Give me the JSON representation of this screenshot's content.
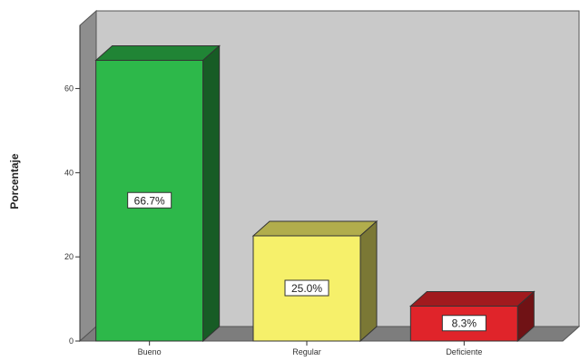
{
  "chart_data": {
    "type": "bar",
    "style": "3d",
    "title": "",
    "xlabel": "",
    "ylabel": "Porcentaje",
    "ylim": [
      0,
      75
    ],
    "yticks": [
      0,
      20,
      40,
      60
    ],
    "categories": [
      "Bueno",
      "Regular",
      "Deficiente"
    ],
    "values": [
      66.7,
      25.0,
      8.3
    ],
    "data_labels": [
      "66.7%",
      "25.0%",
      "8.3%"
    ],
    "colors": [
      "#2db84a",
      "#f6f06a",
      "#e0242a"
    ],
    "background_color": "#c9c9c9",
    "grid": false,
    "legend": "none"
  }
}
